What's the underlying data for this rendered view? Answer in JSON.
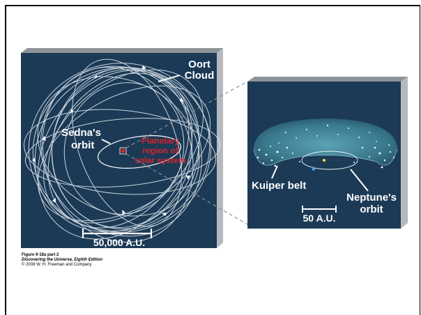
{
  "oort_panel": {
    "title_line1": "Oort",
    "title_line2": "Cloud",
    "sedna_line1": "Sedna's",
    "sedna_line2": "orbit",
    "planetary_line1": "Planetary",
    "planetary_line2": "region of",
    "planetary_line3": "solar system",
    "scale_label": "50,000 A.U."
  },
  "kuiper_panel": {
    "kuiper_label": "Kuiper belt",
    "neptune_line1": "Neptune's",
    "neptune_line2": "orbit",
    "scale_label": "50 A.U."
  },
  "caption": {
    "figure": "Figure 9-18a part 2",
    "book": "Discovering the Universe, Eighth Edition",
    "copyright": "© 2008 W. H. Freeman and Company"
  },
  "colors": {
    "panel_bg": "#1c3a56",
    "panel_side": "#b5b9bd",
    "accent_red": "#d8242a",
    "sun_yellow": "#f2e23a",
    "neptune_blue": "#4fa0e0"
  }
}
